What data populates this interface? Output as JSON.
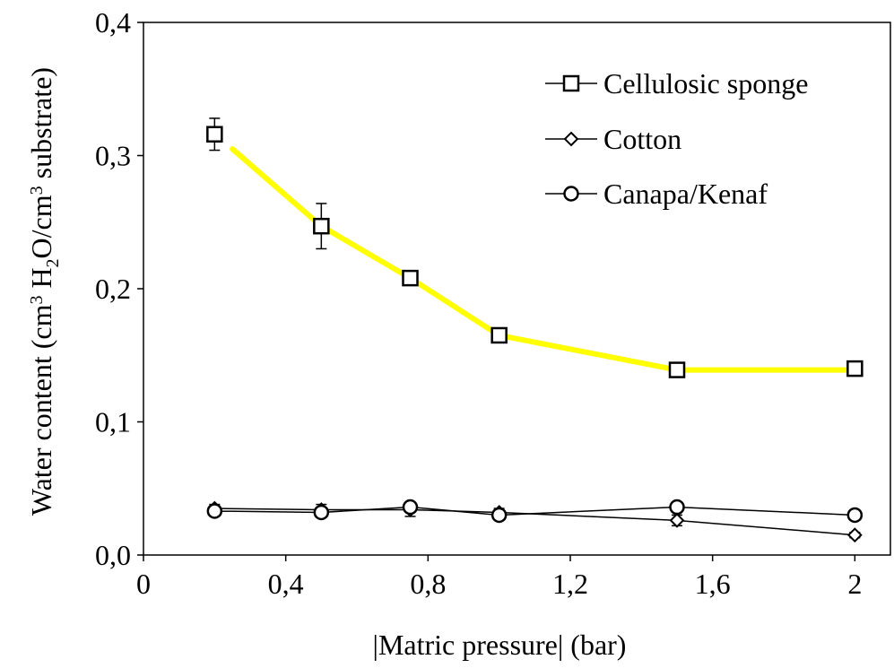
{
  "chart_data": {
    "type": "line",
    "title": "",
    "xlabel": "|Matric pressure| (bar)",
    "ylabel": {
      "part1": "Water content (cm",
      "sup1": "3",
      "part2": " H",
      "sub1": "2",
      "part3": "O/cm",
      "sup2": "3",
      "part4": " substrate)"
    },
    "xlim": [
      0,
      2.1
    ],
    "ylim": [
      0,
      0.4
    ],
    "x_ticks": [
      {
        "value": 0,
        "label": "0"
      },
      {
        "value": 0.4,
        "label": "0,4"
      },
      {
        "value": 0.8,
        "label": "0,8"
      },
      {
        "value": 1.2,
        "label": "1,2"
      },
      {
        "value": 1.6,
        "label": "1,6"
      },
      {
        "value": 2.0,
        "label": "2"
      }
    ],
    "y_ticks": [
      {
        "value": 0,
        "label": "0,0"
      },
      {
        "value": 0.1,
        "label": "0,1"
      },
      {
        "value": 0.2,
        "label": "0,2"
      },
      {
        "value": 0.3,
        "label": "0,3"
      },
      {
        "value": 0.4,
        "label": "0,4"
      }
    ],
    "grid": false,
    "legend_position": "top-right",
    "series": [
      {
        "name": "Cellulosic sponge",
        "marker": "square",
        "color": "#000000",
        "x": [
          0.2,
          0.5,
          0.75,
          1.0,
          1.5,
          2.0
        ],
        "y": [
          0.316,
          0.247,
          0.208,
          0.165,
          0.139,
          0.14
        ],
        "error": [
          0.012,
          0.017,
          0.004,
          0.004,
          0.003,
          0.003
        ]
      },
      {
        "name": "Cotton",
        "marker": "diamond",
        "color": "#000000",
        "x": [
          0.2,
          0.5,
          0.75,
          1.0,
          1.5,
          2.0
        ],
        "y": [
          0.035,
          0.034,
          0.034,
          0.032,
          0.026,
          0.015
        ],
        "error": [
          0.003,
          0.004,
          0.005,
          0.003,
          0.004,
          0.002
        ]
      },
      {
        "name": "Canapa/Kenaf",
        "marker": "circle",
        "color": "#000000",
        "x": [
          0.2,
          0.5,
          0.75,
          1.0,
          1.5,
          2.0
        ],
        "y": [
          0.033,
          0.032,
          0.036,
          0.03,
          0.036,
          0.03
        ],
        "error": [
          0.002,
          0.002,
          0.003,
          0.002,
          0.002,
          0.002
        ]
      }
    ],
    "fit_line": {
      "color": "#ffff00",
      "x": [
        0.25,
        0.5,
        0.75,
        1.0,
        1.5,
        2.0
      ],
      "y": [
        0.305,
        0.247,
        0.208,
        0.165,
        0.139,
        0.139
      ]
    }
  }
}
